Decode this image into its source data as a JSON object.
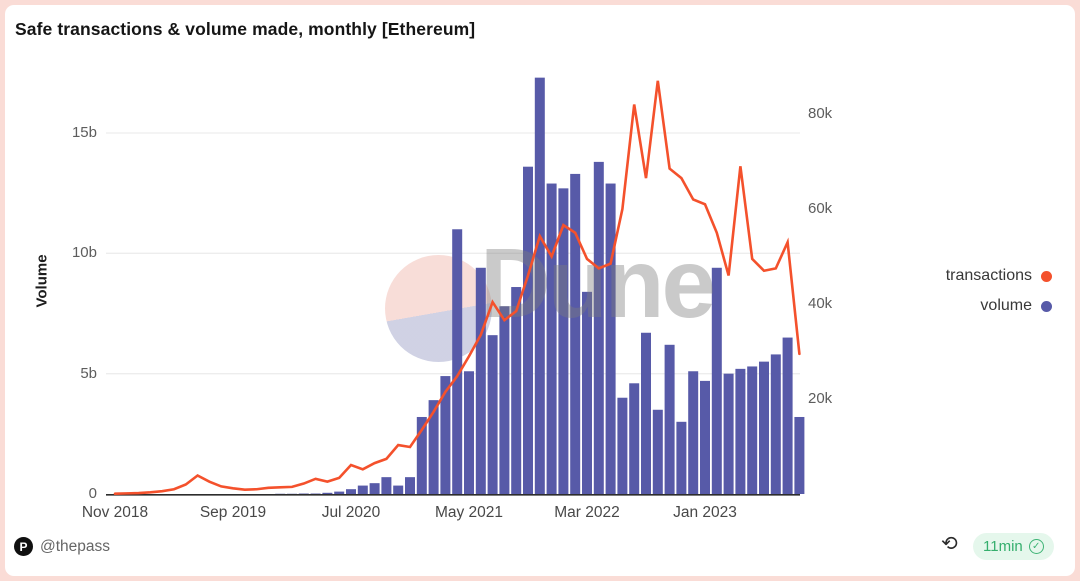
{
  "card": {
    "title": "Safe transactions & volume made, monthly [Ethereum]"
  },
  "watermark": {
    "text": "Dune"
  },
  "legend": [
    {
      "label": "transactions",
      "color": "#F4512C"
    },
    {
      "label": "volume",
      "color": "#575AA8"
    }
  ],
  "footer": {
    "author": "@thepass",
    "author_icon": "P",
    "refresh_icon_glyph": "⟲",
    "freshness": "11min",
    "check_glyph": "✓"
  },
  "colors": {
    "frame": "#FADCD6",
    "card_bg": "#ffffff",
    "gridline": "#ededed",
    "axis_line": "#2d2d2d",
    "bar": "#575AA8",
    "line": "#F4512C",
    "badge_bg": "#E5F7EC",
    "badge_text": "#35AF6D"
  },
  "chart_data": {
    "type": "bar+line",
    "title": "Safe transactions & volume made, monthly [Ethereum]",
    "xlabel": "",
    "ylabel": "Volume",
    "grid": "horizontal",
    "legend_position": "right",
    "x": [
      "Nov 2018",
      "Dec 2018",
      "Jan 2019",
      "Feb 2019",
      "Mar 2019",
      "Apr 2019",
      "May 2019",
      "Jun 2019",
      "Jul 2019",
      "Aug 2019",
      "Sep 2019",
      "Oct 2019",
      "Nov 2019",
      "Dec 2019",
      "Jan 2020",
      "Feb 2020",
      "Mar 2020",
      "Apr 2020",
      "May 2020",
      "Jun 2020",
      "Jul 2020",
      "Aug 2020",
      "Sep 2020",
      "Oct 2020",
      "Nov 2020",
      "Dec 2020",
      "Jan 2021",
      "Feb 2021",
      "Mar 2021",
      "Apr 2021",
      "May 2021",
      "Jun 2021",
      "Jul 2021",
      "Aug 2021",
      "Sep 2021",
      "Oct 2021",
      "Nov 2021",
      "Dec 2021",
      "Jan 2022",
      "Feb 2022",
      "Mar 2022",
      "Apr 2022",
      "May 2022",
      "Jun 2022",
      "Jul 2022",
      "Aug 2022",
      "Sep 2022",
      "Oct 2022",
      "Nov 2022",
      "Dec 2022",
      "Jan 2023",
      "Feb 2023",
      "Mar 2023",
      "Apr 2023",
      "May 2023",
      "Jun 2023",
      "Jul 2023",
      "Aug 2023",
      "Sep 2023"
    ],
    "x_tick_labels": [
      "Nov 2018",
      "Sep 2019",
      "Jul 2020",
      "May 2021",
      "Mar 2022",
      "Jan 2023"
    ],
    "x_tick_month_index": [
      0,
      10,
      20,
      30,
      40,
      50
    ],
    "left_axis": {
      "label": "Volume",
      "tick_labels": [
        "0",
        "5b",
        "10b",
        "15b"
      ],
      "tick_values_billions": [
        0,
        5,
        10,
        15
      ],
      "unit": "billions"
    },
    "right_axis": {
      "series": "transactions",
      "tick_labels": [
        "20k",
        "40k",
        "60k",
        "80k"
      ],
      "tick_values": [
        20000,
        40000,
        60000,
        80000
      ]
    },
    "series": [
      {
        "name": "volume",
        "type": "bar",
        "color": "#575AA8",
        "axis": "left",
        "values_billions": [
          0,
          0,
          0,
          0,
          0,
          0,
          0,
          0,
          0,
          0,
          0,
          0,
          0,
          0,
          0.01,
          0.01,
          0.02,
          0.02,
          0.05,
          0.1,
          0.2,
          0.35,
          0.45,
          0.7,
          0.35,
          0.7,
          3.2,
          3.9,
          4.9,
          11,
          5.1,
          9.4,
          6.6,
          7.8,
          8.6,
          13.6,
          17.3,
          12.9,
          12.7,
          13.3,
          8.4,
          13.8,
          12.9,
          4,
          4.6,
          6.7,
          3.5,
          6.2,
          3,
          5.1,
          4.7,
          9.4,
          5,
          5.2,
          5.3,
          5.5,
          5.8,
          6.5,
          3.2
        ]
      },
      {
        "name": "transactions",
        "type": "line",
        "color": "#F4512C",
        "axis": "right",
        "values": [
          60,
          130,
          200,
          350,
          600,
          1000,
          2000,
          3900,
          2600,
          1600,
          1200,
          900,
          1000,
          1300,
          1400,
          1500,
          2200,
          3200,
          2600,
          3400,
          6100,
          5200,
          6500,
          7400,
          10300,
          9900,
          13500,
          17300,
          21500,
          24800,
          29000,
          33500,
          40400,
          36600,
          38500,
          46000,
          54300,
          50000,
          56600,
          55000,
          49500,
          47500,
          48500,
          60000,
          82000,
          66500,
          87000,
          68500,
          66500,
          62000,
          61000,
          55000,
          46000,
          69000,
          49500,
          47000,
          47500,
          53000,
          29500
        ]
      }
    ]
  }
}
